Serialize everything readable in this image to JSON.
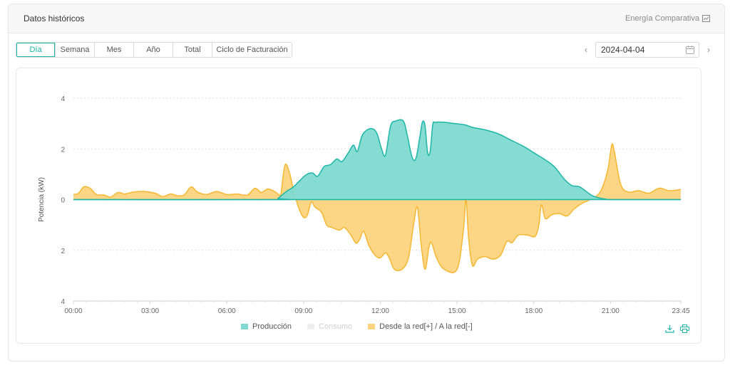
{
  "panel": {
    "title": "Datos históricos",
    "compare_label": "Energía Comparativa"
  },
  "tabs": [
    {
      "label": "Día",
      "active": true
    },
    {
      "label": "Semana",
      "active": false
    },
    {
      "label": "Mes",
      "active": false
    },
    {
      "label": "Año",
      "active": false
    },
    {
      "label": "Total",
      "active": false
    },
    {
      "label": "Ciclo de Facturación",
      "active": false
    }
  ],
  "date_nav": {
    "date": "2024-04-04",
    "prev_icon": "chevron-left-icon",
    "next_icon": "chevron-right-icon",
    "calendar_icon": "calendar-icon"
  },
  "toolbar_icons": [
    "download-icon",
    "print-icon"
  ],
  "colors": {
    "accent": "#1cb6a6",
    "production_fill": "#7fd9d1",
    "production_line": "#1cb6a6",
    "grid_fill": "#fdd47e",
    "grid_line": "#f5b731",
    "consumption_legend": "#eeeeee"
  },
  "chart_data": {
    "type": "area",
    "title": "",
    "xlabel": "",
    "ylabel": "Potencia (kW)",
    "ylim": [
      -4,
      4
    ],
    "xlim": [
      0,
      23.75
    ],
    "y_ticks": [
      "4",
      "2",
      "0",
      "2",
      "4"
    ],
    "x_ticks": [
      "00:00",
      "03:00",
      "06:00",
      "09:00",
      "12:00",
      "15:00",
      "18:00",
      "21:00",
      "23:45"
    ],
    "grid": true,
    "legend_position": "bottom",
    "series": [
      {
        "name": "Producción",
        "color": "#1cb6a6",
        "points": [
          [
            0,
            0
          ],
          [
            7.8,
            0
          ],
          [
            8,
            0.05
          ],
          [
            8.3,
            0.3
          ],
          [
            8.6,
            0.5
          ],
          [
            8.85,
            0.75
          ],
          [
            9.1,
            0.98
          ],
          [
            9.35,
            1.05
          ],
          [
            9.55,
            0.92
          ],
          [
            9.8,
            1.3
          ],
          [
            10.05,
            1.38
          ],
          [
            10.3,
            1.6
          ],
          [
            10.5,
            1.5
          ],
          [
            10.75,
            1.85
          ],
          [
            10.95,
            2.15
          ],
          [
            11.1,
            1.9
          ],
          [
            11.3,
            2.55
          ],
          [
            11.6,
            2.8
          ],
          [
            11.85,
            2.65
          ],
          [
            12.05,
            2.0
          ],
          [
            12.2,
            1.75
          ],
          [
            12.4,
            2.9
          ],
          [
            12.6,
            3.1
          ],
          [
            12.9,
            3.1
          ],
          [
            13.05,
            2.55
          ],
          [
            13.25,
            1.65
          ],
          [
            13.4,
            1.65
          ],
          [
            13.55,
            2.5
          ],
          [
            13.65,
            3.07
          ],
          [
            13.75,
            2.9
          ],
          [
            13.85,
            1.85
          ],
          [
            13.95,
            1.9
          ],
          [
            14.05,
            2.95
          ],
          [
            14.15,
            3.05
          ],
          [
            14.5,
            3.05
          ],
          [
            14.9,
            3.0
          ],
          [
            15.3,
            2.95
          ],
          [
            15.6,
            2.85
          ],
          [
            16.1,
            2.75
          ],
          [
            16.6,
            2.6
          ],
          [
            17.1,
            2.35
          ],
          [
            17.6,
            2.1
          ],
          [
            18.0,
            1.85
          ],
          [
            18.4,
            1.6
          ],
          [
            18.8,
            1.3
          ],
          [
            19.2,
            0.8
          ],
          [
            19.5,
            0.55
          ],
          [
            19.8,
            0.5
          ],
          [
            20.3,
            0.15
          ],
          [
            20.8,
            0.02
          ],
          [
            21.2,
            0
          ],
          [
            23.75,
            0
          ]
        ]
      },
      {
        "name": "Consumo",
        "color": "#eeeeee",
        "points": []
      },
      {
        "name": "Desde la red[+] / A la red[-]",
        "color": "#f5b731",
        "points": [
          [
            0,
            0.2
          ],
          [
            0.2,
            0.25
          ],
          [
            0.4,
            0.5
          ],
          [
            0.65,
            0.45
          ],
          [
            0.9,
            0.2
          ],
          [
            1.2,
            0.18
          ],
          [
            1.45,
            0.1
          ],
          [
            1.75,
            0.28
          ],
          [
            2.0,
            0.22
          ],
          [
            2.35,
            0.3
          ],
          [
            2.8,
            0.32
          ],
          [
            3.2,
            0.25
          ],
          [
            3.5,
            0.12
          ],
          [
            3.8,
            0.22
          ],
          [
            4.1,
            0.15
          ],
          [
            4.35,
            0.2
          ],
          [
            4.6,
            0.5
          ],
          [
            4.85,
            0.3
          ],
          [
            5.2,
            0.2
          ],
          [
            5.6,
            0.32
          ],
          [
            6.0,
            0.2
          ],
          [
            6.4,
            0.22
          ],
          [
            6.8,
            0.18
          ],
          [
            7.1,
            0.45
          ],
          [
            7.35,
            0.28
          ],
          [
            7.6,
            0.42
          ],
          [
            7.9,
            0.3
          ],
          [
            8.1,
            0.2
          ],
          [
            8.2,
            0.95
          ],
          [
            8.3,
            1.4
          ],
          [
            8.45,
            1.05
          ],
          [
            8.6,
            0.4
          ],
          [
            8.8,
            -0.3
          ],
          [
            9.0,
            -0.7
          ],
          [
            9.15,
            -0.6
          ],
          [
            9.3,
            -0.1
          ],
          [
            9.45,
            -0.3
          ],
          [
            9.7,
            -0.5
          ],
          [
            9.9,
            -1.0
          ],
          [
            10.1,
            -1.1
          ],
          [
            10.4,
            -1.2
          ],
          [
            10.6,
            -1.1
          ],
          [
            10.85,
            -1.4
          ],
          [
            11.05,
            -1.72
          ],
          [
            11.2,
            -1.55
          ],
          [
            11.35,
            -1.25
          ],
          [
            11.55,
            -1.8
          ],
          [
            11.8,
            -2.2
          ],
          [
            12.0,
            -2.3
          ],
          [
            12.2,
            -2.1
          ],
          [
            12.35,
            -2.3
          ],
          [
            12.55,
            -2.75
          ],
          [
            12.85,
            -2.75
          ],
          [
            13.1,
            -2.3
          ],
          [
            13.3,
            -1.0
          ],
          [
            13.45,
            -0.3
          ],
          [
            13.6,
            -1.8
          ],
          [
            13.75,
            -2.75
          ],
          [
            13.9,
            -1.9
          ],
          [
            14.0,
            -1.7
          ],
          [
            14.2,
            -2.3
          ],
          [
            14.5,
            -2.75
          ],
          [
            15.0,
            -2.75
          ],
          [
            15.25,
            -1.2
          ],
          [
            15.35,
            0
          ],
          [
            15.45,
            -1.5
          ],
          [
            15.6,
            -2.6
          ],
          [
            15.8,
            -2.35
          ],
          [
            16.1,
            -2.25
          ],
          [
            16.4,
            -2.35
          ],
          [
            16.7,
            -2.2
          ],
          [
            16.95,
            -1.65
          ],
          [
            17.15,
            -1.7
          ],
          [
            17.4,
            -1.4
          ],
          [
            17.75,
            -1.4
          ],
          [
            18.05,
            -1.45
          ],
          [
            18.2,
            -1.0
          ],
          [
            18.3,
            -0.2
          ],
          [
            18.45,
            -0.75
          ],
          [
            18.7,
            -0.6
          ],
          [
            19.0,
            -0.55
          ],
          [
            19.3,
            -0.65
          ],
          [
            19.55,
            -0.4
          ],
          [
            19.8,
            -0.2
          ],
          [
            20.1,
            -0.05
          ],
          [
            20.4,
            0.1
          ],
          [
            20.65,
            0.4
          ],
          [
            20.9,
            1.2
          ],
          [
            21.05,
            2.15
          ],
          [
            21.15,
            1.9
          ],
          [
            21.4,
            0.6
          ],
          [
            21.7,
            0.3
          ],
          [
            22.1,
            0.35
          ],
          [
            22.5,
            0.25
          ],
          [
            22.9,
            0.45
          ],
          [
            23.3,
            0.35
          ],
          [
            23.75,
            0.4
          ]
        ]
      }
    ]
  }
}
